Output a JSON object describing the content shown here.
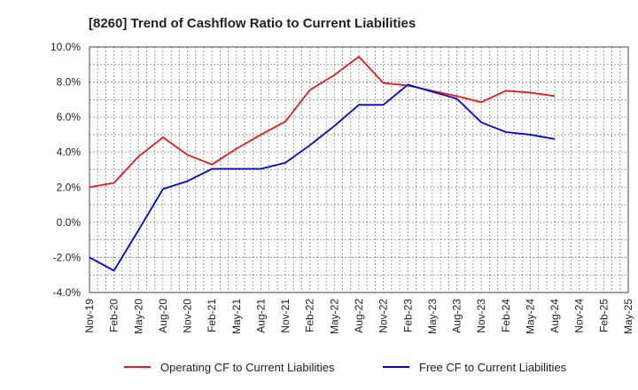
{
  "chart_data": {
    "type": "line",
    "title": "[8260]  Trend of Cashflow Ratio to Current Liabilities",
    "xlabel": "",
    "ylabel": "",
    "ylim": [
      -4.0,
      10.0
    ],
    "y_ticks": [
      "-4.0%",
      "-2.0%",
      "0.0%",
      "2.0%",
      "4.0%",
      "6.0%",
      "8.0%",
      "10.0%"
    ],
    "y_tick_values": [
      -4,
      -2,
      0,
      2,
      4,
      6,
      8,
      10
    ],
    "x_tick_labels": [
      "Nov-19",
      "Feb-20",
      "May-20",
      "Aug-20",
      "Nov-20",
      "Feb-21",
      "May-21",
      "Aug-21",
      "Nov-21",
      "Feb-22",
      "May-22",
      "Aug-22",
      "Nov-22",
      "Feb-23",
      "May-23",
      "Aug-23",
      "Nov-23",
      "Feb-24",
      "May-24",
      "Aug-24",
      "Nov-24",
      "Feb-25",
      "May-25"
    ],
    "grid": true,
    "legend_position": "bottom",
    "series": [
      {
        "name": "Operating CF to Current Liabilities",
        "color": "#e31a1c",
        "values": [
          2.0,
          2.25,
          3.75,
          4.85,
          3.85,
          3.3,
          4.2,
          5.0,
          5.75,
          7.55,
          8.4,
          9.45,
          7.95,
          7.8,
          7.5,
          7.2,
          6.85,
          7.5,
          7.4,
          7.2
        ]
      },
      {
        "name": "Free CF to Current Liabilities",
        "color": "#0000dd",
        "values": [
          -2.0,
          -2.75,
          -0.45,
          1.9,
          2.35,
          3.05,
          3.05,
          3.05,
          3.4,
          4.4,
          5.5,
          6.7,
          6.7,
          7.85,
          7.45,
          7.05,
          5.7,
          5.15,
          5.0,
          4.75
        ]
      }
    ]
  }
}
